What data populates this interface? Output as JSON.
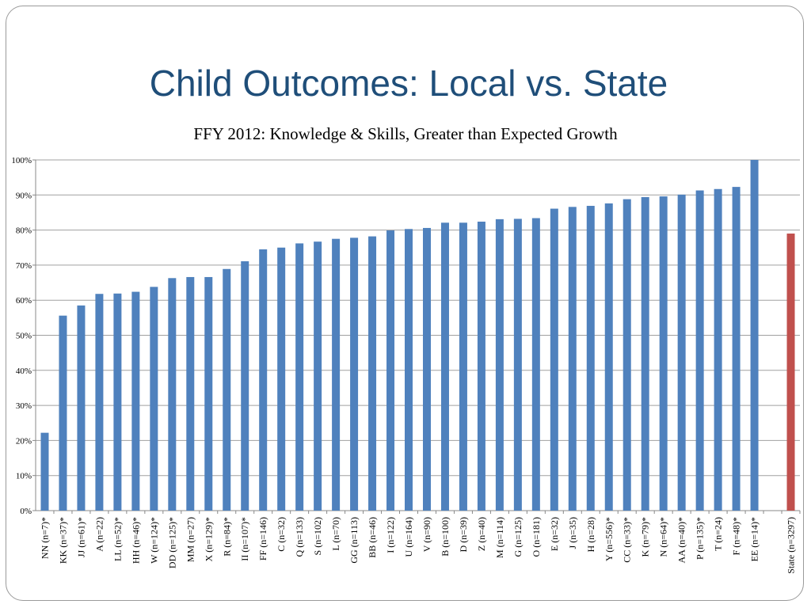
{
  "slide": {
    "title": "Child Outcomes: Local vs. State"
  },
  "chart_data": {
    "type": "bar",
    "title": "FFY 2012: Knowledge & Skills, Greater than Expected Growth",
    "xlabel": "",
    "ylabel": "",
    "ylim": [
      0,
      100
    ],
    "ytick_format": "percent",
    "yticks": [
      0,
      10,
      20,
      30,
      40,
      50,
      60,
      70,
      80,
      90,
      100
    ],
    "ytick_labels": [
      "0%",
      "10%",
      "20%",
      "30%",
      "40%",
      "50%",
      "60%",
      "70%",
      "80%",
      "90%",
      "100%"
    ],
    "grid": true,
    "legend": "none",
    "colors": {
      "local": "#4f81bd",
      "state": "#c0504d"
    },
    "categories": [
      "NN (n=7)*",
      "KK (n=37)*",
      "JJ (n=61)*",
      "A (n=22)",
      "LL (n=52)*",
      "HH (n=46)*",
      "W (n=124)*",
      "DD (n=125)*",
      "MM (n=27)",
      "X (n=129)*",
      "R (n=84)*",
      "II (n=107)*",
      "FF (n=146)",
      "C (n=32)",
      "Q (n=133)",
      "S (n=102)",
      "L (n=70)",
      "GG (n=113)",
      "BB (n=46)",
      "I (n=122)",
      "U (n=164)",
      "V (n=90)",
      "B (n=100)",
      "D (n=39)",
      "Z (n=40)",
      "M (n=114)",
      "G (n=125)",
      "O (n=181)",
      "E (n=32)",
      "J (n=35)",
      "H (n=28)",
      "Y (n=556)*",
      "CC (n=33)*",
      "K (n=79)*",
      "N (n=64)*",
      "AA (n=40)*",
      "P (n=135)*",
      "T (n=24)",
      "F (n=48)*",
      "EE (n=14)*",
      "",
      "State (n=3297)"
    ],
    "values": [
      22.2,
      55.6,
      58.5,
      61.8,
      61.9,
      62.4,
      63.8,
      66.3,
      66.6,
      66.6,
      68.9,
      71.1,
      74.5,
      75.0,
      76.2,
      76.7,
      77.5,
      77.8,
      78.2,
      79.9,
      80.3,
      80.6,
      82.1,
      82.1,
      82.4,
      83.1,
      83.2,
      83.4,
      86.1,
      86.6,
      86.9,
      87.6,
      88.8,
      89.4,
      89.6,
      90.1,
      91.3,
      91.7,
      92.3,
      100.0,
      null,
      79.0
    ],
    "series_color_key": [
      "local",
      "local",
      "local",
      "local",
      "local",
      "local",
      "local",
      "local",
      "local",
      "local",
      "local",
      "local",
      "local",
      "local",
      "local",
      "local",
      "local",
      "local",
      "local",
      "local",
      "local",
      "local",
      "local",
      "local",
      "local",
      "local",
      "local",
      "local",
      "local",
      "local",
      "local",
      "local",
      "local",
      "local",
      "local",
      "local",
      "local",
      "local",
      "local",
      "local",
      "none",
      "state"
    ]
  }
}
